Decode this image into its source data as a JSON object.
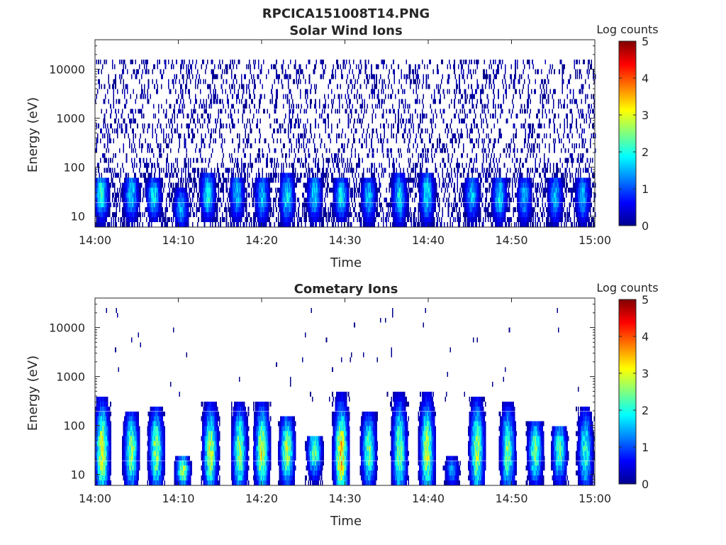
{
  "figure_title": "RPCICA151008T14.PNG",
  "colorbar": {
    "label": "Log counts",
    "ticks": [
      "0",
      "1",
      "2",
      "3",
      "4",
      "5"
    ],
    "min": 0,
    "max": 5,
    "colormap": "jet"
  },
  "chart_data": [
    {
      "type": "heatmap",
      "title": "Solar Wind Ions",
      "xlabel": "Time",
      "ylabel": "Energy (eV)",
      "x_ticks": [
        "14:00",
        "14:10",
        "14:20",
        "14:30",
        "14:40",
        "14:50",
        "15:00"
      ],
      "y_ticks": [
        "10",
        "100",
        "1000",
        "10000"
      ],
      "x_range": [
        "14:00",
        "15:00"
      ],
      "y_range": [
        6,
        40000
      ],
      "y_scale": "log",
      "z_label": "Log counts",
      "z_range": [
        0,
        5
      ],
      "background_noise": {
        "e_min": 6,
        "e_max": 15000,
        "log_counts": 0.3
      },
      "bursts": [
        {
          "time_min": 0.7,
          "e_low": 6,
          "e_high": 60,
          "peak_energy": 28,
          "peak_log_counts": 2.0
        },
        {
          "time_min": 4.3,
          "e_low": 6,
          "e_high": 60,
          "peak_energy": 28,
          "peak_log_counts": 1.8
        },
        {
          "time_min": 7.0,
          "e_low": 8,
          "e_high": 60,
          "peak_energy": 25,
          "peak_log_counts": 1.8
        },
        {
          "time_min": 10.3,
          "e_low": 6,
          "e_high": 40,
          "peak_energy": 15,
          "peak_log_counts": 1.5
        },
        {
          "time_min": 13.5,
          "e_low": 8,
          "e_high": 70,
          "peak_energy": 28,
          "peak_log_counts": 2.0
        },
        {
          "time_min": 17.0,
          "e_low": 6,
          "e_high": 60,
          "peak_energy": 28,
          "peak_log_counts": 1.6
        },
        {
          "time_min": 20.0,
          "e_low": 6,
          "e_high": 60,
          "peak_energy": 25,
          "peak_log_counts": 1.6
        },
        {
          "time_min": 23.0,
          "e_low": 6,
          "e_high": 70,
          "peak_energy": 25,
          "peak_log_counts": 1.8
        },
        {
          "time_min": 26.3,
          "e_low": 6,
          "e_high": 60,
          "peak_energy": 28,
          "peak_log_counts": 1.8
        },
        {
          "time_min": 29.5,
          "e_low": 8,
          "e_high": 60,
          "peak_energy": 25,
          "peak_log_counts": 1.9
        },
        {
          "time_min": 32.8,
          "e_low": 6,
          "e_high": 60,
          "peak_energy": 25,
          "peak_log_counts": 1.6
        },
        {
          "time_min": 36.5,
          "e_low": 6,
          "e_high": 70,
          "peak_energy": 25,
          "peak_log_counts": 1.8
        },
        {
          "time_min": 39.8,
          "e_low": 6,
          "e_high": 70,
          "peak_energy": 28,
          "peak_log_counts": 1.9
        },
        {
          "time_min": 45.2,
          "e_low": 6,
          "e_high": 60,
          "peak_energy": 28,
          "peak_log_counts": 1.6
        },
        {
          "time_min": 48.5,
          "e_low": 6,
          "e_high": 60,
          "peak_energy": 25,
          "peak_log_counts": 1.8
        },
        {
          "time_min": 51.5,
          "e_low": 6,
          "e_high": 60,
          "peak_energy": 25,
          "peak_log_counts": 1.5
        },
        {
          "time_min": 55.2,
          "e_low": 6,
          "e_high": 60,
          "peak_energy": 25,
          "peak_log_counts": 1.6
        },
        {
          "time_min": 58.5,
          "e_low": 6,
          "e_high": 60,
          "peak_energy": 25,
          "peak_log_counts": 1.5
        }
      ]
    },
    {
      "type": "heatmap",
      "title": "Cometary Ions",
      "xlabel": "Time",
      "ylabel": "Energy (eV)",
      "x_ticks": [
        "14:00",
        "14:10",
        "14:20",
        "14:30",
        "14:40",
        "14:50",
        "15:00"
      ],
      "y_ticks": [
        "10",
        "100",
        "1000",
        "10000"
      ],
      "x_range": [
        "14:00",
        "15:00"
      ],
      "y_range": [
        6,
        40000
      ],
      "y_scale": "log",
      "z_label": "Log counts",
      "z_range": [
        0,
        5
      ],
      "background_noise": {
        "e_min": 200,
        "e_max": 25000,
        "log_counts": 0.1
      },
      "bursts": [
        {
          "time_min": 0.8,
          "e_low": 6,
          "e_high": 400,
          "peak_energy": 30,
          "peak_log_counts": 3.0
        },
        {
          "time_min": 4.3,
          "e_low": 6,
          "e_high": 200,
          "peak_energy": 30,
          "peak_log_counts": 2.6
        },
        {
          "time_min": 7.3,
          "e_low": 6,
          "e_high": 250,
          "peak_energy": 30,
          "peak_log_counts": 2.6
        },
        {
          "time_min": 10.5,
          "e_low": 6,
          "e_high": 25,
          "peak_energy": 12,
          "peak_log_counts": 2.7
        },
        {
          "time_min": 13.8,
          "e_low": 6,
          "e_high": 300,
          "peak_energy": 30,
          "peak_log_counts": 2.8
        },
        {
          "time_min": 17.3,
          "e_low": 6,
          "e_high": 300,
          "peak_energy": 30,
          "peak_log_counts": 2.6
        },
        {
          "time_min": 20.0,
          "e_low": 6,
          "e_high": 300,
          "peak_energy": 30,
          "peak_log_counts": 2.9
        },
        {
          "time_min": 23.0,
          "e_low": 6,
          "e_high": 150,
          "peak_energy": 30,
          "peak_log_counts": 2.8
        },
        {
          "time_min": 26.3,
          "e_low": 6,
          "e_high": 60,
          "peak_energy": 30,
          "peak_log_counts": 2.4
        },
        {
          "time_min": 29.5,
          "e_low": 6,
          "e_high": 500,
          "peak_energy": 25,
          "peak_log_counts": 3.3
        },
        {
          "time_min": 32.8,
          "e_low": 6,
          "e_high": 200,
          "peak_energy": 30,
          "peak_log_counts": 2.4
        },
        {
          "time_min": 36.5,
          "e_low": 6,
          "e_high": 500,
          "peak_energy": 30,
          "peak_log_counts": 2.5
        },
        {
          "time_min": 39.8,
          "e_low": 6,
          "e_high": 500,
          "peak_energy": 30,
          "peak_log_counts": 2.8
        },
        {
          "time_min": 42.8,
          "e_low": 6,
          "e_high": 25,
          "peak_energy": 12,
          "peak_log_counts": 1.3
        },
        {
          "time_min": 45.8,
          "e_low": 6,
          "e_high": 400,
          "peak_energy": 30,
          "peak_log_counts": 2.7
        },
        {
          "time_min": 49.5,
          "e_low": 6,
          "e_high": 300,
          "peak_energy": 30,
          "peak_log_counts": 2.4
        },
        {
          "time_min": 52.8,
          "e_low": 6,
          "e_high": 120,
          "peak_energy": 30,
          "peak_log_counts": 2.5
        },
        {
          "time_min": 55.7,
          "e_low": 6,
          "e_high": 100,
          "peak_energy": 30,
          "peak_log_counts": 2.3
        },
        {
          "time_min": 58.8,
          "e_low": 6,
          "e_high": 250,
          "peak_energy": 30,
          "peak_log_counts": 2.1
        }
      ]
    }
  ]
}
